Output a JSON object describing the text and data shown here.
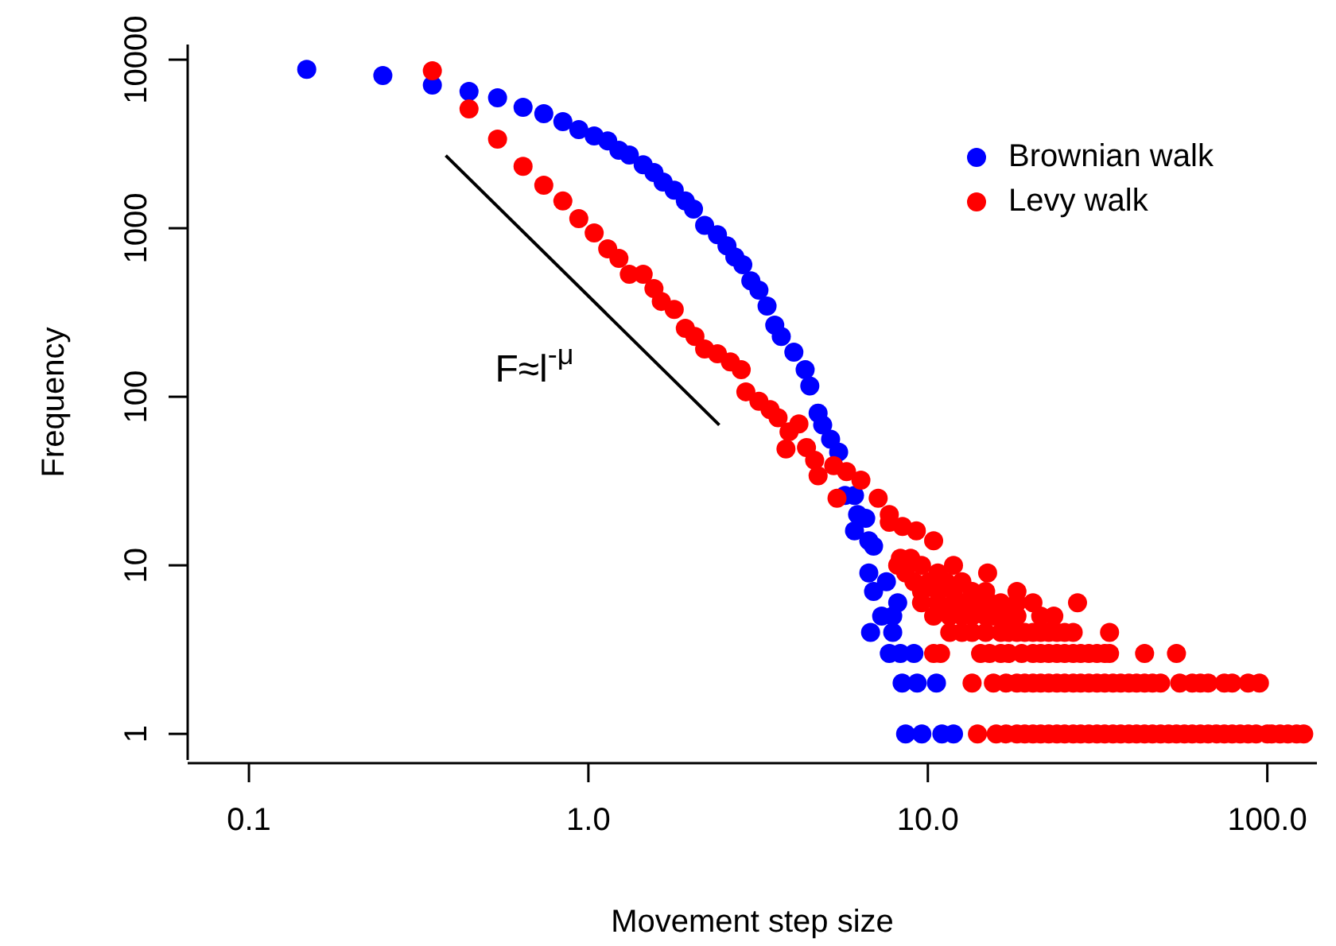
{
  "chart_data": {
    "type": "scatter",
    "xlabel": "Movement step size",
    "ylabel": "Frequency",
    "log": "xy",
    "grid": false,
    "legend": "top right",
    "marker": "circle",
    "xlim": [
      0.066,
      140
    ],
    "xticks": [
      0.1,
      {
        "value": 1,
        "label": "1.0"
      },
      {
        "value": 10,
        "label": "10.0"
      },
      {
        "value": 100,
        "label": "100.0"
      }
    ],
    "ylim": [
      0.7,
      12300
    ],
    "yticks": [
      1,
      10,
      100,
      1000,
      10000
    ],
    "annotations": [
      "F≈l$^{-μ}$"
    ],
    "series": [
      {
        "name": "Brownian walk",
        "color": "#0000ff",
        "x": [
          0.148,
          0.248,
          0.347,
          0.445,
          0.54,
          0.642,
          0.739,
          0.841,
          0.937,
          1.04,
          1.14,
          1.23,
          1.32,
          1.45,
          1.56,
          1.66,
          1.79,
          1.93,
          2.04,
          2.2,
          2.4,
          2.56,
          2.7,
          2.85,
          3.01,
          3.18,
          3.36,
          3.54,
          3.7,
          4.03,
          4.35,
          4.49,
          4.75,
          4.9,
          5.17,
          5.46,
          5.7,
          6.08,
          6.21,
          6.08,
          6.7,
          6.56,
          6.92,
          6.7,
          7.55,
          6.92,
          8.15,
          7.31,
          7.88,
          6.78,
          7.88,
          7.7,
          8.3,
          9.1,
          8.4,
          9.3,
          10.6,
          8.6,
          9.6,
          11.0,
          11.9
        ],
        "values": [
          8770,
          8050,
          7060,
          6480,
          5940,
          5210,
          4780,
          4290,
          3850,
          3530,
          3300,
          2900,
          2720,
          2380,
          2140,
          1880,
          1680,
          1450,
          1300,
          1040,
          916,
          787,
          676,
          607,
          488,
          429,
          345,
          266,
          228,
          184,
          145,
          116,
          80,
          68,
          56,
          47,
          26,
          26,
          20,
          16,
          14,
          19,
          13,
          9,
          8,
          7,
          6,
          5,
          5,
          4,
          4,
          3,
          3,
          3,
          2,
          2,
          2,
          1,
          1,
          1,
          1
        ]
      },
      {
        "name": "Levy walk",
        "color": "#ff0000",
        "x": [
          0.347,
          0.445,
          0.54,
          0.642,
          0.739,
          0.841,
          0.937,
          1.04,
          1.14,
          1.23,
          1.32,
          1.45,
          1.56,
          1.64,
          1.79,
          1.93,
          2.06,
          2.2,
          2.4,
          2.62,
          2.82,
          2.91,
          3.18,
          3.43,
          3.62,
          3.9,
          4.17,
          3.82,
          4.39,
          4.64,
          4.75,
          5.28,
          5.76,
          5.4,
          6.35,
          7.14,
          7.7,
          7.7,
          8.42,
          9.25,
          10.4,
          8.3,
          8.9,
          8.15,
          9.58,
          11.9,
          8.6,
          10.7,
          15.0,
          9.1,
          10.1,
          11.3,
          12.6,
          9.58,
          10.7,
          11.9,
          13.5,
          14.8,
          18.3,
          9.58,
          10.7,
          11.9,
          12.6,
          14.0,
          15.2,
          16.4,
          18.3,
          20.4,
          27.6,
          10.4,
          11.6,
          12.6,
          13.5,
          14.8,
          15.6,
          17.0,
          18.3,
          21.5,
          23.5,
          11.6,
          12.6,
          13.5,
          14.8,
          16.4,
          17.3,
          18.3,
          19.3,
          20.4,
          21.5,
          22.7,
          24.0,
          25.3,
          26.8,
          34.3,
          10.4,
          10.9,
          14.3,
          15.2,
          16.4,
          17.3,
          18.9,
          20.4,
          21.5,
          22.7,
          24.0,
          25.3,
          26.8,
          28.2,
          29.8,
          31.5,
          33.2,
          34.3,
          43.5,
          54.0,
          13.5,
          15.6,
          17.0,
          18.3,
          19.3,
          20.4,
          21.5,
          22.7,
          24.0,
          25.3,
          26.8,
          28.2,
          29.8,
          31.5,
          33.2,
          35.1,
          37.0,
          39.1,
          41.2,
          43.5,
          45.9,
          48.5,
          55.2,
          60.1,
          63.5,
          67.0,
          74.7,
          78.8,
          87.8,
          94.8,
          14.0,
          15.9,
          17.0,
          18.3,
          19.3,
          20.4,
          21.5,
          22.7,
          24.0,
          25.3,
          26.8,
          28.2,
          29.8,
          31.5,
          33.2,
          35.1,
          37.0,
          39.1,
          41.2,
          43.5,
          45.9,
          48.5,
          51.2,
          54.0,
          57.0,
          60.1,
          63.5,
          67.0,
          70.8,
          74.7,
          78.8,
          83.2,
          87.8,
          92.7,
          100,
          103,
          109,
          115,
          122,
          128
        ],
        "values": [
          8590,
          5100,
          3380,
          2330,
          1800,
          1450,
          1140,
          937,
          754,
          662,
          533,
          533,
          438,
          368,
          330,
          255,
          228,
          192,
          180,
          161,
          145,
          107,
          94,
          84,
          75,
          62,
          69,
          49,
          50,
          42,
          34,
          39,
          36,
          25,
          32,
          25,
          20,
          18,
          17,
          16,
          14,
          11,
          11,
          10,
          10,
          10,
          9,
          9,
          9,
          8,
          8,
          8,
          8,
          7,
          7,
          7,
          7,
          7,
          7,
          6,
          6,
          6,
          6,
          6,
          6,
          6,
          6,
          6,
          6,
          5,
          5,
          5,
          5,
          5,
          5,
          5,
          5,
          5,
          5,
          4,
          4,
          4,
          4,
          4,
          4,
          4,
          4,
          4,
          4,
          4,
          4,
          4,
          4,
          4,
          3,
          3,
          3,
          3,
          3,
          3,
          3,
          3,
          3,
          3,
          3,
          3,
          3,
          3,
          3,
          3,
          3,
          3,
          3,
          3,
          2,
          2,
          2,
          2,
          2,
          2,
          2,
          2,
          2,
          2,
          2,
          2,
          2,
          2,
          2,
          2,
          2,
          2,
          2,
          2,
          2,
          2,
          2,
          2,
          2,
          2,
          2,
          2,
          2,
          2,
          1,
          1,
          1,
          1,
          1,
          1,
          1,
          1,
          1,
          1,
          1,
          1,
          1,
          1,
          1,
          1,
          1,
          1,
          1,
          1,
          1,
          1,
          1,
          1,
          1,
          1,
          1,
          1,
          1,
          1,
          1,
          1,
          1,
          1,
          1,
          1,
          1,
          1,
          1,
          1
        ]
      },
      {
        "type": "line",
        "marker": "none",
        "color": "#000000",
        "x": [
          0.38,
          2.43
        ],
        "values": [
          2700,
          68
        ]
      }
    ]
  }
}
